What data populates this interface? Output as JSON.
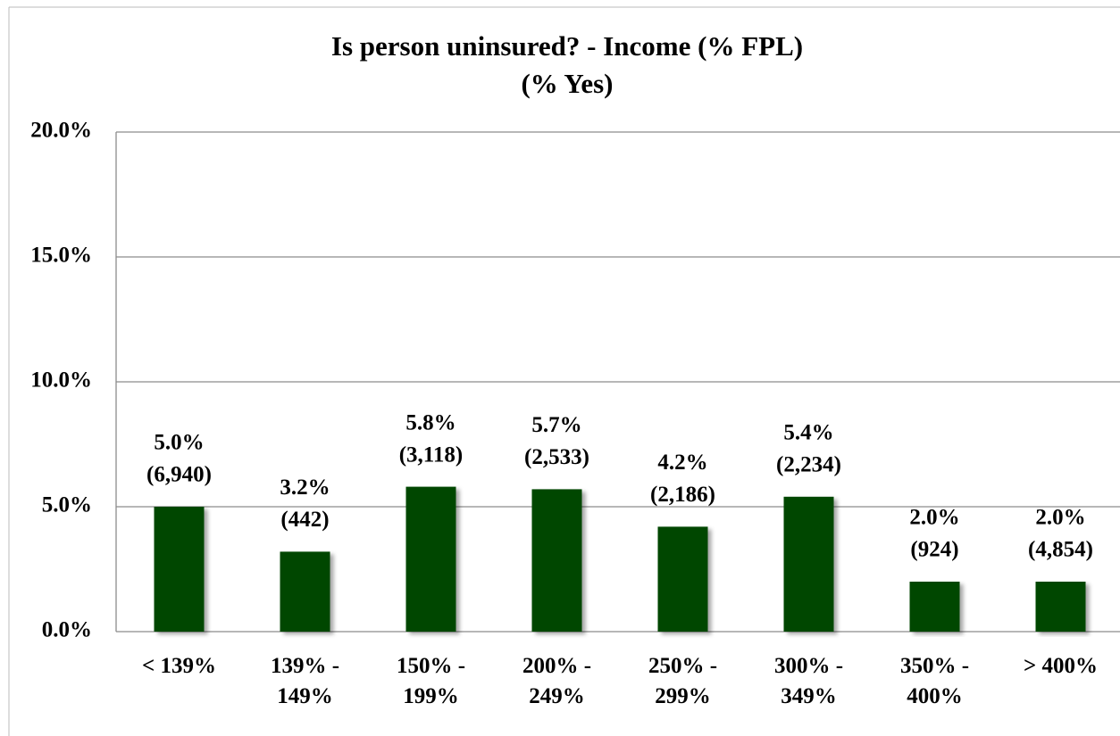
{
  "chart_data": {
    "type": "bar",
    "title": "Is person uninsured?  - Income (% FPL)",
    "subtitle": "(% Yes)",
    "categories": [
      "< 139%",
      "139% -\n149%",
      "150% -\n199%",
      "200% -\n249%",
      "250% -\n299%",
      "300% -\n349%",
      "350% -\n400%",
      "> 400%"
    ],
    "values": [
      5.0,
      3.2,
      5.8,
      5.7,
      4.2,
      5.4,
      2.0,
      2.0
    ],
    "value_labels": [
      "5.0%",
      "3.2%",
      "5.8%",
      "5.7%",
      "4.2%",
      "5.4%",
      "2.0%",
      "2.0%"
    ],
    "count_labels": [
      "(6,940)",
      "(442)",
      "(3,118)",
      "(2,533)",
      "(2,186)",
      "(2,234)",
      "(924)",
      "(4,854)"
    ],
    "color": "#024702",
    "ylim": [
      0,
      20
    ],
    "yticks": [
      {
        "value": 0,
        "label": "0.0%"
      },
      {
        "value": 5,
        "label": "5.0%"
      },
      {
        "value": 10,
        "label": "10.0%"
      },
      {
        "value": 15,
        "label": "15.0%"
      },
      {
        "value": 20,
        "label": "20.0%"
      }
    ],
    "grid": true
  }
}
